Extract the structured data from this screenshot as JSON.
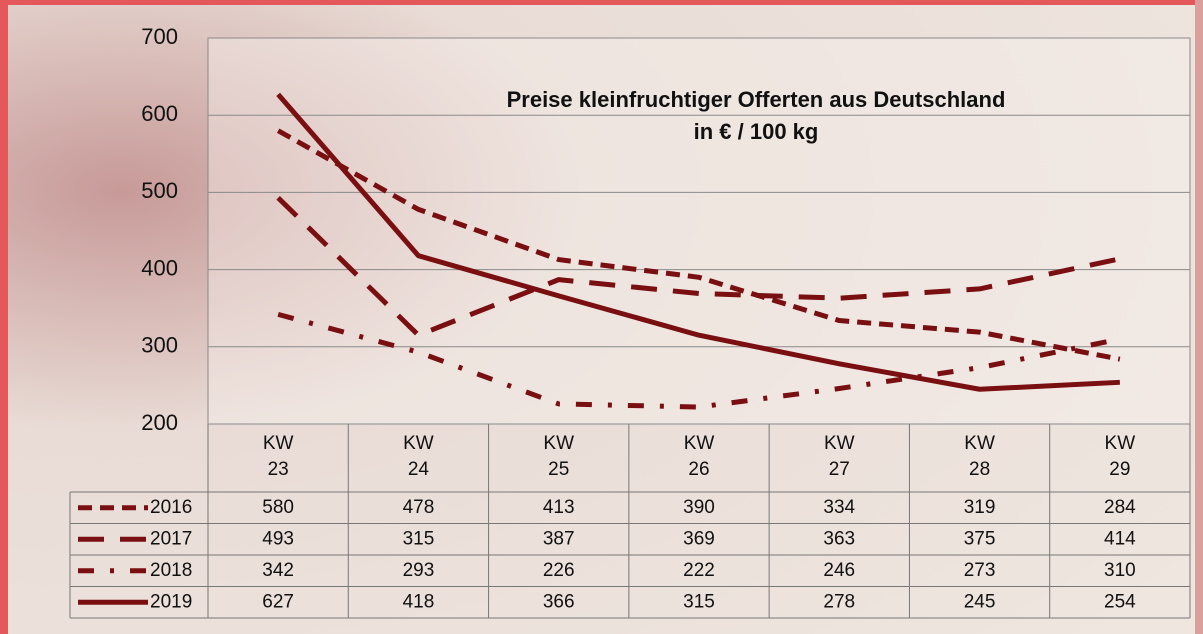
{
  "chart_data": {
    "type": "line",
    "title": "Preise kleinfruchtiger Offerten aus Deutschland",
    "subtitle": "in € / 100 kg",
    "categories": [
      "KW 23",
      "KW 24",
      "KW 25",
      "KW 26",
      "KW 27",
      "KW 28",
      "KW 29"
    ],
    "series": [
      {
        "name": "2016",
        "color": "#7a0f12",
        "values": [
          580,
          478,
          413,
          390,
          334,
          319,
          284
        ]
      },
      {
        "name": "2017",
        "color": "#7a0f12",
        "values": [
          493,
          315,
          387,
          369,
          363,
          375,
          414
        ]
      },
      {
        "name": "2018",
        "color": "#7a0f12",
        "values": [
          342,
          293,
          226,
          222,
          246,
          273,
          310
        ]
      },
      {
        "name": "2019",
        "color": "#7a0f12",
        "values": [
          627,
          418,
          366,
          315,
          278,
          245,
          254
        ]
      }
    ],
    "ylim": [
      200,
      700
    ],
    "yticks": [
      200,
      300,
      400,
      500,
      600,
      700
    ],
    "grid": true
  }
}
